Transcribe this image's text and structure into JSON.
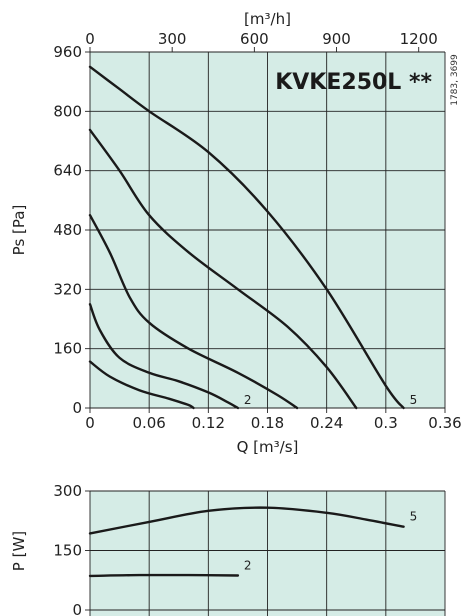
{
  "colors": {
    "plot_background": "#d5ece6",
    "grid": "#222222",
    "curve": "#1a1a1a"
  },
  "chart_data": [
    {
      "type": "line",
      "title": "KVKE250L **",
      "side_code": "1783, 3699",
      "xlabel": "Q [m³/s]",
      "ylabel": "Ps [Pa]",
      "secondary_xlabel": "[m³/h]",
      "xlim": [
        0,
        0.36
      ],
      "ylim": [
        0,
        960
      ],
      "x_ticks": [
        "0",
        "0.06",
        "0.12",
        "0.18",
        "0.24",
        "0.3",
        "0.36"
      ],
      "y_ticks": [
        "0",
        "160",
        "320",
        "480",
        "640",
        "800",
        "960"
      ],
      "secondary_x_ticks": [
        "0",
        "300",
        "600",
        "900",
        "1200"
      ],
      "grid": true,
      "series": [
        {
          "points": [
            [
              0,
              125
            ],
            [
              0.02,
              85
            ],
            [
              0.05,
              48
            ],
            [
              0.08,
              25
            ],
            [
              0.1,
              8
            ],
            [
              0.105,
              0
            ]
          ]
        },
        {
          "name": "2",
          "points": [
            [
              0,
              280
            ],
            [
              0.01,
              210
            ],
            [
              0.03,
              135
            ],
            [
              0.06,
              95
            ],
            [
              0.09,
              72
            ],
            [
              0.12,
              42
            ],
            [
              0.14,
              15
            ],
            [
              0.15,
              0
            ]
          ]
        },
        {
          "points": [
            [
              0,
              520
            ],
            [
              0.02,
              420
            ],
            [
              0.04,
              300
            ],
            [
              0.06,
              230
            ],
            [
              0.1,
              160
            ],
            [
              0.15,
              95
            ],
            [
              0.19,
              35
            ],
            [
              0.21,
              0
            ]
          ]
        },
        {
          "points": [
            [
              0,
              750
            ],
            [
              0.03,
              640
            ],
            [
              0.06,
              520
            ],
            [
              0.1,
              420
            ],
            [
              0.15,
              320
            ],
            [
              0.2,
              220
            ],
            [
              0.24,
              110
            ],
            [
              0.27,
              0
            ]
          ]
        },
        {
          "name": "5",
          "points": [
            [
              0,
              920
            ],
            [
              0.03,
              860
            ],
            [
              0.06,
              800
            ],
            [
              0.12,
              690
            ],
            [
              0.18,
              530
            ],
            [
              0.24,
              320
            ],
            [
              0.3,
              60
            ],
            [
              0.318,
              0
            ]
          ]
        }
      ]
    },
    {
      "type": "line",
      "ylabel": "P [W]",
      "xlim": [
        0,
        0.36
      ],
      "ylim": [
        0,
        300
      ],
      "y_ticks": [
        "0",
        "150",
        "300"
      ],
      "grid": true,
      "series": [
        {
          "name": "5",
          "points": [
            [
              0,
              193
            ],
            [
              0.06,
              222
            ],
            [
              0.12,
              250
            ],
            [
              0.18,
              258
            ],
            [
              0.24,
              245
            ],
            [
              0.28,
              228
            ],
            [
              0.318,
              210
            ]
          ]
        },
        {
          "name": "2",
          "points": [
            [
              0,
              86
            ],
            [
              0.05,
              88
            ],
            [
              0.1,
              88
            ],
            [
              0.15,
              87
            ]
          ]
        }
      ]
    }
  ]
}
